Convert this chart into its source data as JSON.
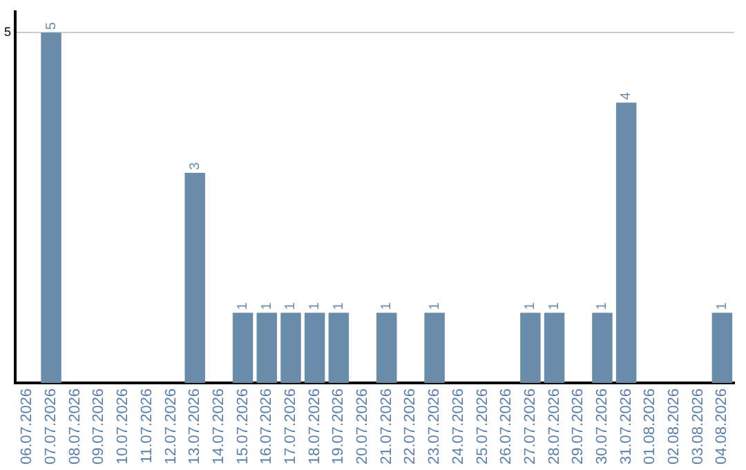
{
  "chart_data": {
    "type": "bar",
    "categories": [
      "06.07.2026",
      "07.07.2026",
      "08.07.2026",
      "09.07.2026",
      "10.07.2026",
      "11.07.2026",
      "12.07.2026",
      "13.07.2026",
      "14.07.2026",
      "15.07.2026",
      "16.07.2026",
      "17.07.2026",
      "18.07.2026",
      "19.07.2026",
      "20.07.2026",
      "21.07.2026",
      "22.07.2026",
      "23.07.2026",
      "24.07.2026",
      "25.07.2026",
      "26.07.2026",
      "27.07.2026",
      "28.07.2026",
      "29.07.2026",
      "30.07.2026",
      "31.07.2026",
      "01.08.2026",
      "02.08.2026",
      "03.08.2026",
      "04.08.2026"
    ],
    "values": [
      null,
      5,
      null,
      null,
      null,
      null,
      null,
      3,
      null,
      1,
      1,
      1,
      1,
      1,
      null,
      1,
      null,
      1,
      null,
      null,
      null,
      1,
      1,
      null,
      1,
      4,
      null,
      null,
      null,
      1
    ],
    "color": "#6a8cab",
    "ylim": [
      0,
      5.3
    ],
    "yticks": [
      5
    ],
    "grid": "y",
    "data_labels": true,
    "legend": false
  }
}
